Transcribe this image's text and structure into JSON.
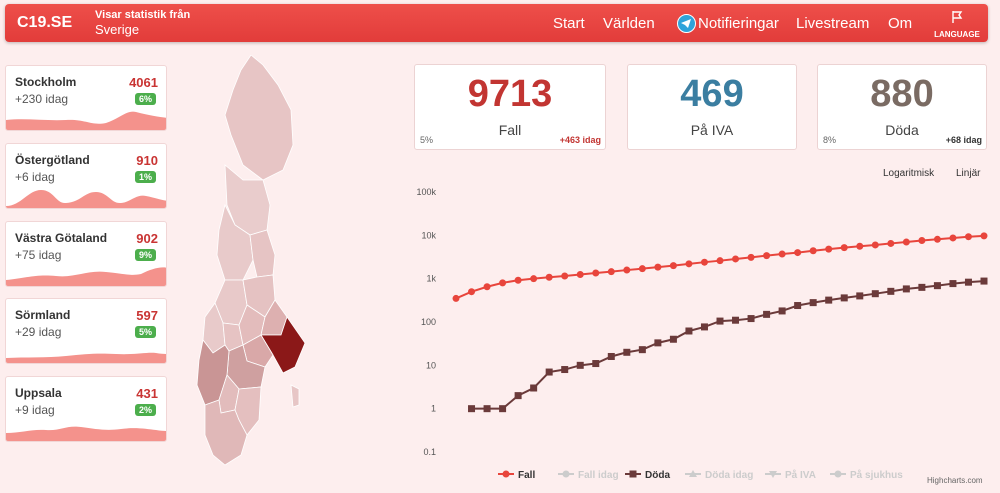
{
  "header": {
    "brand": "C19.SE",
    "subtitle_line1": "Visar statistik från",
    "subtitle_line2": "Sverige",
    "nav": [
      "Start",
      "Världen",
      "Notifieringar",
      "Livestream",
      "Om"
    ],
    "language_label": "LANGUAGE"
  },
  "regions": [
    {
      "name": "Stockholm",
      "total": "4061",
      "today": "+230 idag",
      "pct": "6%"
    },
    {
      "name": "Östergötland",
      "total": "910",
      "today": "+6 idag",
      "pct": "1%"
    },
    {
      "name": "Västra Götaland",
      "total": "902",
      "today": "+75 idag",
      "pct": "9%"
    },
    {
      "name": "Sörmland",
      "total": "597",
      "today": "+29 idag",
      "pct": "5%"
    },
    {
      "name": "Uppsala",
      "total": "431",
      "today": "+9 idag",
      "pct": "2%"
    }
  ],
  "stats": {
    "fall": {
      "value": "9713",
      "label": "Fall",
      "pct": "5%",
      "today": "+463 idag",
      "color": "#c23532"
    },
    "iva": {
      "value": "469",
      "label": "På IVA",
      "color": "#3b7ea1"
    },
    "doda": {
      "value": "880",
      "label": "Döda",
      "pct": "8%",
      "today": "+68 idag",
      "color": "#7a6b63"
    }
  },
  "scale_buttons": {
    "log": "Logaritmisk",
    "linear": "Linjär"
  },
  "chart_data": {
    "type": "line",
    "y_scale": "log",
    "ylim": [
      0.1,
      100000
    ],
    "y_ticks": [
      "100k",
      "10k",
      "1k",
      "100",
      "10",
      "1",
      "0.1"
    ],
    "series": [
      {
        "name": "Fall",
        "color": "#e8453c",
        "marker": "circle",
        "visible": true,
        "values": [
          350,
          500,
          650,
          800,
          920,
          1000,
          1080,
          1150,
          1250,
          1350,
          1450,
          1580,
          1700,
          1850,
          2000,
          2200,
          2400,
          2600,
          2850,
          3100,
          3400,
          3700,
          4000,
          4400,
          4800,
          5200,
          5600,
          6000,
          6500,
          7000,
          7600,
          8100,
          8700,
          9300,
          9713
        ]
      },
      {
        "name": "Fall idag",
        "color": "#cccccc",
        "marker": "circle",
        "visible": false
      },
      {
        "name": "Döda",
        "color": "#6b3a3a",
        "marker": "square",
        "visible": true,
        "values": [
          null,
          1,
          1,
          1,
          2,
          3,
          7,
          8,
          10,
          11,
          16,
          20,
          23,
          33,
          40,
          62,
          77,
          105,
          110,
          120,
          150,
          180,
          240,
          280,
          320,
          360,
          400,
          450,
          510,
          580,
          630,
          690,
          770,
          830,
          880
        ]
      },
      {
        "name": "Döda idag",
        "color": "#cccccc",
        "marker": "triangle",
        "visible": false
      },
      {
        "name": "På IVA",
        "color": "#cccccc",
        "marker": "triangle-down",
        "visible": false
      },
      {
        "name": "På sjukhus",
        "color": "#cccccc",
        "marker": "circle",
        "visible": false
      }
    ],
    "credits": "Highcharts.com",
    "grid": false,
    "legend_position": "bottom"
  }
}
